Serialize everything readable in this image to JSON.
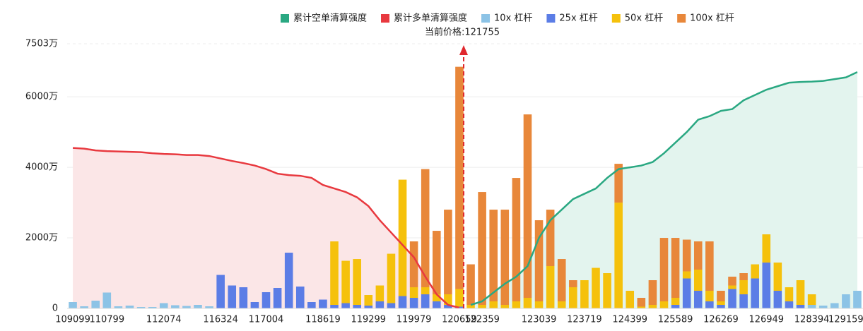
{
  "chart_data": {
    "type": "bar",
    "current_price_label": "当前价格:121755",
    "categories": [
      "109099",
      null,
      null,
      "110799",
      null,
      null,
      null,
      null,
      "112074",
      null,
      null,
      null,
      null,
      "116324",
      null,
      null,
      null,
      "117004",
      null,
      null,
      null,
      null,
      "118619",
      null,
      null,
      null,
      "119299",
      null,
      null,
      null,
      "119979",
      null,
      null,
      null,
      "120659",
      null,
      "122359",
      null,
      null,
      null,
      null,
      "123039",
      null,
      null,
      null,
      "123719",
      null,
      null,
      null,
      "124399",
      null,
      null,
      null,
      "125589",
      null,
      null,
      null,
      "126269",
      null,
      null,
      null,
      "126949",
      null,
      null,
      null,
      "128394",
      null,
      null,
      "129159",
      null
    ],
    "series": [
      {
        "name": "10x 杠杆",
        "color": "#8cc3e6",
        "values": [
          180,
          60,
          220,
          450,
          60,
          80,
          40,
          40,
          150,
          90,
          70,
          100,
          60,
          0,
          0,
          0,
          0,
          0,
          0,
          0,
          0,
          0,
          0,
          0,
          0,
          0,
          0,
          0,
          0,
          0,
          0,
          0,
          0,
          0,
          0,
          0,
          0,
          0,
          0,
          0,
          0,
          0,
          0,
          0,
          0,
          0,
          0,
          0,
          0,
          0,
          0,
          0,
          0,
          0,
          0,
          0,
          0,
          0,
          0,
          0,
          0,
          0,
          0,
          0,
          0,
          100,
          80,
          150,
          400,
          500
        ]
      },
      {
        "name": "25x 杠杆",
        "color": "#5b7de6",
        "values": [
          0,
          0,
          0,
          0,
          0,
          0,
          0,
          0,
          0,
          0,
          0,
          0,
          0,
          950,
          650,
          600,
          180,
          460,
          580,
          1580,
          620,
          180,
          250,
          100,
          150,
          100,
          80,
          200,
          150,
          350,
          300,
          400,
          200,
          100,
          50,
          0,
          0,
          0,
          0,
          0,
          0,
          0,
          0,
          0,
          0,
          0,
          0,
          0,
          0,
          0,
          0,
          0,
          0,
          100,
          850,
          500,
          200,
          100,
          550,
          400,
          850,
          1300,
          500,
          200,
          100,
          0,
          0,
          0,
          0,
          0
        ]
      },
      {
        "name": "50x 杠杆",
        "color": "#f5c10c",
        "values": [
          0,
          0,
          0,
          0,
          0,
          0,
          0,
          0,
          0,
          0,
          0,
          0,
          0,
          0,
          0,
          0,
          0,
          0,
          0,
          0,
          0,
          0,
          0,
          1800,
          1200,
          1300,
          300,
          450,
          1400,
          3300,
          300,
          200,
          200,
          300,
          500,
          100,
          100,
          200,
          100,
          200,
          300,
          200,
          1200,
          200,
          600,
          800,
          1150,
          1000,
          3000,
          500,
          50,
          100,
          200,
          200,
          200,
          600,
          300,
          100,
          100,
          400,
          400,
          800,
          800,
          400,
          700,
          300,
          0,
          0,
          0,
          0
        ]
      },
      {
        "name": "100x 杠杆",
        "color": "#e8873a",
        "values": [
          0,
          0,
          0,
          0,
          0,
          0,
          0,
          0,
          0,
          0,
          0,
          0,
          0,
          0,
          0,
          0,
          0,
          0,
          0,
          0,
          0,
          0,
          0,
          0,
          0,
          0,
          0,
          0,
          0,
          0,
          1300,
          3350,
          1800,
          2400,
          6300,
          1150,
          3200,
          2600,
          2700,
          3500,
          5200,
          2300,
          1600,
          1200,
          200,
          0,
          0,
          0,
          1100,
          0,
          250,
          700,
          1800,
          1700,
          900,
          800,
          1400,
          300,
          250,
          200,
          0,
          0,
          0,
          0,
          0,
          0,
          0,
          0,
          0,
          0
        ]
      }
    ],
    "lines": [
      {
        "name": "累计空单清算强度",
        "color": "#2aa882",
        "fill": "#e3f4ee",
        "values": [
          null,
          null,
          null,
          null,
          null,
          null,
          null,
          null,
          null,
          null,
          null,
          null,
          null,
          null,
          null,
          null,
          null,
          null,
          null,
          null,
          null,
          null,
          null,
          null,
          null,
          null,
          null,
          null,
          null,
          null,
          null,
          null,
          null,
          null,
          null,
          100,
          200,
          450,
          700,
          900,
          1200,
          2000,
          2500,
          2800,
          3100,
          3250,
          3400,
          3700,
          3950,
          4000,
          4050,
          4150,
          4400,
          4700,
          5000,
          5350,
          5450,
          5600,
          5650,
          5900,
          6050,
          6200,
          6300,
          6400,
          6420,
          6430,
          6450,
          6500,
          6550,
          6700
        ]
      },
      {
        "name": "累计多单清算强度",
        "color": "#e8393f",
        "fill": "#fbe6e7",
        "values": [
          4550,
          4530,
          4480,
          4460,
          4450,
          4440,
          4430,
          4400,
          4380,
          4370,
          4350,
          4350,
          4320,
          4250,
          4180,
          4120,
          4050,
          3950,
          3820,
          3780,
          3760,
          3700,
          3500,
          3400,
          3300,
          3150,
          2900,
          2500,
          2150,
          1800,
          1450,
          900,
          400,
          100,
          20,
          null,
          null,
          null,
          null,
          null,
          null,
          null,
          null,
          null,
          null,
          null,
          null,
          null,
          null,
          null,
          null,
          null,
          null,
          null,
          null,
          null,
          null,
          null,
          null,
          null,
          null,
          null,
          null,
          null,
          null,
          null,
          null,
          null,
          null,
          null
        ]
      }
    ],
    "ylim": [
      0,
      7503
    ],
    "yticks": [
      {
        "value": 0,
        "label": "0"
      },
      {
        "value": 2000,
        "label": "2000万"
      },
      {
        "value": 4000,
        "label": "4000万"
      },
      {
        "value": 6000,
        "label": "6000万"
      },
      {
        "value": 7503,
        "label": "7503万"
      }
    ],
    "grid": true
  }
}
